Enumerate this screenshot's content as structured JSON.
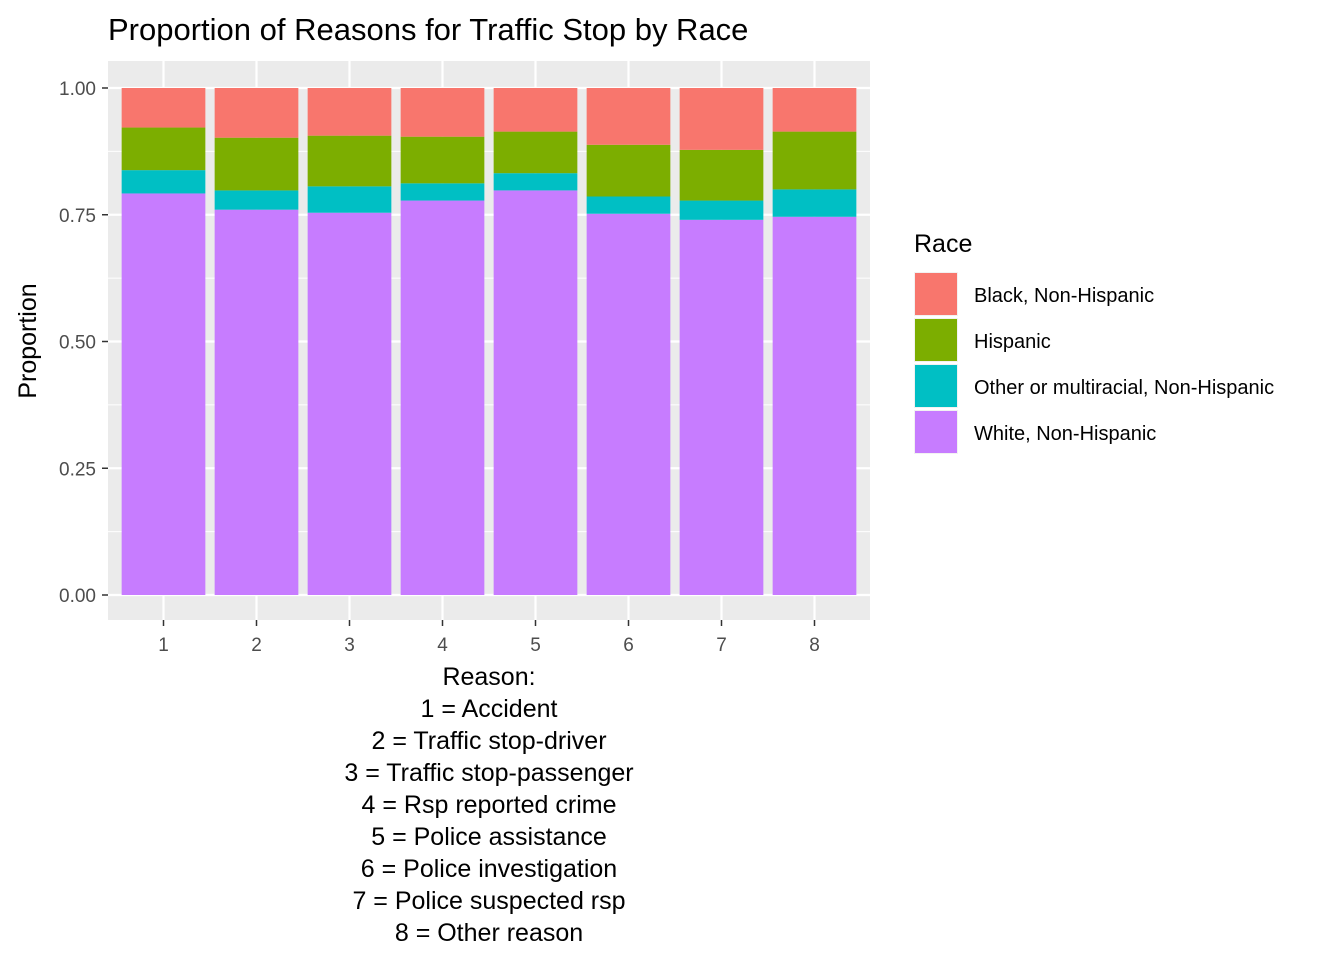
{
  "chart_data": {
    "type": "bar",
    "stacked": true,
    "title": "Proportion of Reasons for Traffic Stop by Race",
    "ylabel": "Proportion",
    "xlabel_lines": [
      "Reason:",
      "1 = Accident",
      "2 = Traffic stop-driver",
      "3 = Traffic stop-passenger",
      "4 = Rsp reported crime",
      "5 = Police assistance",
      "6 = Police investigation",
      "7 = Police suspected rsp",
      "8 = Other reason"
    ],
    "categories": [
      "1",
      "2",
      "3",
      "4",
      "5",
      "6",
      "7",
      "8"
    ],
    "ylim": [
      0,
      1
    ],
    "yticks": [
      "0.00",
      "0.25",
      "0.50",
      "0.75",
      "1.00"
    ],
    "ytick_values": [
      0,
      0.25,
      0.5,
      0.75,
      1.0
    ],
    "grid": true,
    "legend_title": "Race",
    "legend_position": "right",
    "series": [
      {
        "name": "White, Non-Hispanic",
        "color": "#C77CFF",
        "values": [
          0.792,
          0.76,
          0.754,
          0.778,
          0.798,
          0.752,
          0.74,
          0.746
        ]
      },
      {
        "name": "Other or multiracial, Non-Hispanic",
        "color": "#00BFC4",
        "values": [
          0.046,
          0.038,
          0.052,
          0.034,
          0.034,
          0.034,
          0.038,
          0.054
        ]
      },
      {
        "name": "Hispanic",
        "color": "#7CAE00",
        "values": [
          0.084,
          0.104,
          0.1,
          0.092,
          0.082,
          0.102,
          0.1,
          0.114
        ]
      },
      {
        "name": "Black, Non-Hispanic",
        "color": "#F8766D",
        "values": [
          0.078,
          0.098,
          0.094,
          0.096,
          0.086,
          0.112,
          0.122,
          0.086
        ]
      }
    ],
    "legend_order": [
      "Black, Non-Hispanic",
      "Hispanic",
      "Other or multiracial, Non-Hispanic",
      "White, Non-Hispanic"
    ]
  }
}
